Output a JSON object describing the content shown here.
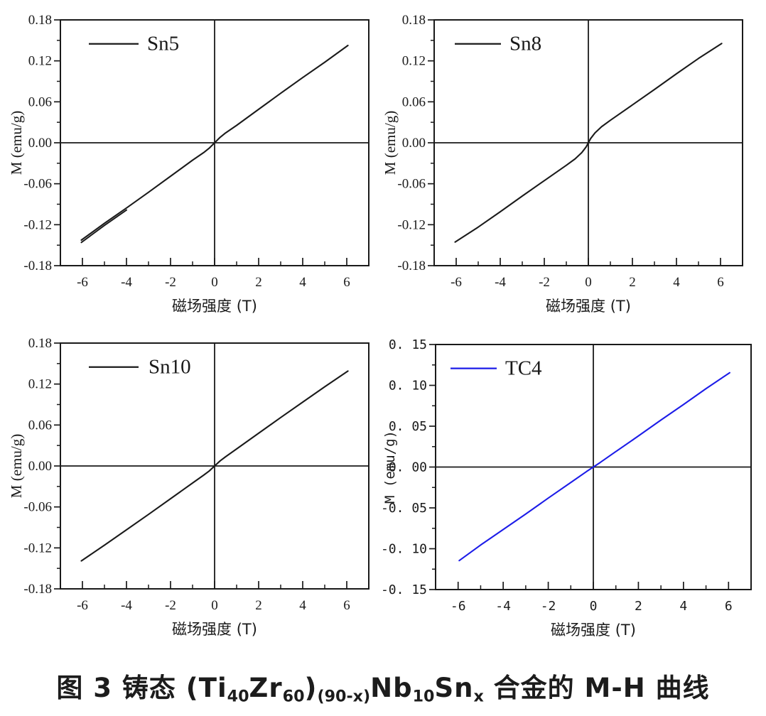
{
  "figure": {
    "caption": {
      "full_text": "图 3  铸态(Ti40Zr60)(90-x)Nb10Snx 合金的 M-H 曲线",
      "segments": [
        {
          "text": "图 3  铸态 (Ti",
          "sub": false
        },
        {
          "text": "40",
          "sub": true
        },
        {
          "text": "Zr",
          "sub": false
        },
        {
          "text": "60",
          "sub": true
        },
        {
          "text": ")",
          "sub": false
        },
        {
          "text": "(90-x)",
          "sub": true
        },
        {
          "text": "Nb",
          "sub": false
        },
        {
          "text": "10",
          "sub": true
        },
        {
          "text": "Sn",
          "sub": false
        },
        {
          "text": "x",
          "sub": true
        },
        {
          "text": " 合金的 M-H 曲线",
          "sub": false
        }
      ]
    }
  },
  "chart_data": [
    {
      "id": "sn5",
      "type": "line",
      "legend": "Sn5",
      "line_color": "#1a1a1a",
      "xlabel": "磁场强度 (T)",
      "ylabel": "M (emu/g)",
      "xlim": [
        -7,
        7
      ],
      "ylim": [
        -0.18,
        0.18
      ],
      "x_major_ticks": [
        -6,
        -4,
        -2,
        0,
        2,
        4,
        6
      ],
      "x_tick_labels": [
        "-6",
        "-4",
        "-2",
        "0",
        "2",
        "4",
        "6"
      ],
      "x_minor_ticks": [
        -7,
        -5,
        -3,
        -1,
        1,
        3,
        5,
        7
      ],
      "y_major_ticks": [
        0.18,
        0.12,
        0.06,
        0,
        -0.06,
        -0.12,
        -0.18
      ],
      "y_tick_labels": [
        "0.18",
        "0.12",
        "0.06",
        "0.00",
        "-0.06",
        "-0.12",
        "-0.18"
      ],
      "y_minor_ticks": [
        0.15,
        0.09,
        0.03,
        -0.03,
        -0.09,
        -0.15
      ],
      "points": [
        [
          -6.05,
          -0.1425
        ],
        [
          -5,
          -0.118
        ],
        [
          -4,
          -0.0955
        ],
        [
          -3,
          -0.0725
        ],
        [
          -2,
          -0.049
        ],
        [
          -1,
          -0.0255
        ],
        [
          -0.5,
          -0.0145
        ],
        [
          -0.25,
          -0.008
        ],
        [
          0,
          0
        ],
        [
          0.25,
          0.008
        ],
        [
          0.5,
          0.0145
        ],
        [
          1,
          0.0255
        ],
        [
          2,
          0.049
        ],
        [
          3,
          0.0725
        ],
        [
          4,
          0.0955
        ],
        [
          5,
          0.118
        ],
        [
          6.05,
          0.1425
        ]
      ],
      "points_return_branch": [
        [
          -6.05,
          -0.146
        ],
        [
          -5,
          -0.121
        ],
        [
          -4,
          -0.0985
        ]
      ]
    },
    {
      "id": "sn8",
      "type": "line",
      "legend": "Sn8",
      "line_color": "#1a1a1a",
      "xlabel": "磁场强度 (T)",
      "ylabel": "M (emu/g)",
      "xlim": [
        -7,
        7
      ],
      "ylim": [
        -0.18,
        0.18
      ],
      "x_major_ticks": [
        -6,
        -4,
        -2,
        0,
        2,
        4,
        6
      ],
      "x_tick_labels": [
        "-6",
        "-4",
        "-2",
        "0",
        "2",
        "4",
        "6"
      ],
      "x_minor_ticks": [
        -7,
        -5,
        -3,
        -1,
        1,
        3,
        5,
        7
      ],
      "y_major_ticks": [
        0.18,
        0.12,
        0.06,
        0,
        -0.06,
        -0.12,
        -0.18
      ],
      "y_tick_labels": [
        "0.18",
        "0.12",
        "0.06",
        "0.00",
        "-0.06",
        "-0.12",
        "-0.18"
      ],
      "y_minor_ticks": [
        0.15,
        0.09,
        0.03,
        -0.03,
        -0.09,
        -0.15
      ],
      "points": [
        [
          -6.05,
          -0.1455
        ],
        [
          -5,
          -0.1235
        ],
        [
          -4,
          -0.101
        ],
        [
          -3,
          -0.078
        ],
        [
          -2,
          -0.0555
        ],
        [
          -1,
          -0.033
        ],
        [
          -0.6,
          -0.0235
        ],
        [
          -0.3,
          -0.0145
        ],
        [
          -0.1,
          -0.006
        ],
        [
          0,
          0
        ],
        [
          0.1,
          0.006
        ],
        [
          0.3,
          0.0145
        ],
        [
          0.6,
          0.0235
        ],
        [
          1,
          0.033
        ],
        [
          2,
          0.0555
        ],
        [
          3,
          0.078
        ],
        [
          4,
          0.101
        ],
        [
          5,
          0.1235
        ],
        [
          6.05,
          0.1455
        ]
      ]
    },
    {
      "id": "sn10",
      "type": "line",
      "legend": "Sn10",
      "line_color": "#1a1a1a",
      "xlabel": "磁场强度 (T)",
      "ylabel": "M (emu/g)",
      "xlim": [
        -7,
        7
      ],
      "ylim": [
        -0.18,
        0.18
      ],
      "x_major_ticks": [
        -6,
        -4,
        -2,
        0,
        2,
        4,
        6
      ],
      "x_tick_labels": [
        "-6",
        "-4",
        "-2",
        "0",
        "2",
        "4",
        "6"
      ],
      "x_minor_ticks": [
        -7,
        -5,
        -3,
        -1,
        1,
        3,
        5,
        7
      ],
      "y_major_ticks": [
        0.18,
        0.12,
        0.06,
        0,
        -0.06,
        -0.12,
        -0.18
      ],
      "y_tick_labels": [
        "0.18",
        "0.12",
        "0.06",
        "0.00",
        "-0.06",
        "-0.12",
        "-0.18"
      ],
      "y_minor_ticks": [
        0.15,
        0.09,
        0.03,
        -0.03,
        -0.09,
        -0.15
      ],
      "points": [
        [
          -6.05,
          -0.139
        ],
        [
          -5,
          -0.116
        ],
        [
          -4,
          -0.0935
        ],
        [
          -3,
          -0.071
        ],
        [
          -2,
          -0.048
        ],
        [
          -1,
          -0.025
        ],
        [
          -0.5,
          -0.0135
        ],
        [
          -0.25,
          -0.0075
        ],
        [
          0,
          0
        ],
        [
          0.25,
          0.0075
        ],
        [
          0.5,
          0.0135
        ],
        [
          1,
          0.025
        ],
        [
          2,
          0.048
        ],
        [
          3,
          0.071
        ],
        [
          4,
          0.0935
        ],
        [
          5,
          0.116
        ],
        [
          6.05,
          0.139
        ]
      ]
    },
    {
      "id": "tc4",
      "type": "line",
      "legend": "TC4",
      "line_color": "#1c1ce8",
      "xlabel": "磁场强度 (T)",
      "ylabel": "M (emu/g)",
      "xlim": [
        -7,
        7
      ],
      "ylim": [
        -0.15,
        0.15
      ],
      "x_major_ticks": [
        -6,
        -4,
        -2,
        0,
        2,
        4,
        6
      ],
      "x_tick_labels": [
        "-6",
        "-4",
        "-2",
        "0",
        "2",
        "4",
        "6"
      ],
      "x_minor_ticks": [
        -7,
        -5,
        -3,
        -1,
        1,
        3,
        5,
        7
      ],
      "y_major_ticks": [
        0.15,
        0.1,
        0.05,
        0,
        -0.05,
        -0.1,
        -0.15
      ],
      "y_tick_labels": [
        "0. 15",
        "0. 10",
        "0. 05",
        "0. 00",
        "-0. 05",
        "-0. 10",
        "-0. 15"
      ],
      "y_minor_ticks": [
        0.125,
        0.075,
        0.025,
        -0.025,
        -0.075,
        -0.125
      ],
      "points": [
        [
          -5.95,
          -0.1145
        ],
        [
          -5,
          -0.0955
        ],
        [
          -4,
          -0.0765
        ],
        [
          -3,
          -0.0575
        ],
        [
          -2,
          -0.038
        ],
        [
          -1,
          -0.019
        ],
        [
          -0.3,
          -0.0055
        ],
        [
          0,
          0
        ],
        [
          0.3,
          0.0055
        ],
        [
          1,
          0.019
        ],
        [
          2,
          0.038
        ],
        [
          3,
          0.0575
        ],
        [
          4,
          0.0765
        ],
        [
          5,
          0.096
        ],
        [
          6.05,
          0.1155
        ]
      ]
    }
  ]
}
